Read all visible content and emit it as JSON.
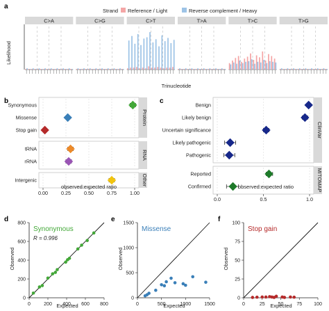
{
  "panel_letters": [
    "a",
    "b",
    "c",
    "d",
    "e",
    "f"
  ],
  "chart_data": [
    {
      "id": "a",
      "type": "bar",
      "legend": {
        "title": "Strand",
        "entries": [
          {
            "name": "Reference / Light",
            "color": "#f4a6a6"
          },
          {
            "name": "Reverse complement / Heavy",
            "color": "#9dc3e6"
          }
        ],
        "placement": "top"
      },
      "facets": [
        "C>A",
        "C>G",
        "C>T",
        "T>A",
        "T>C",
        "T>G"
      ],
      "xlabel": "Trinucleotide",
      "ylabel": "Likelihood",
      "grid": false,
      "series": [
        {
          "name": "Reference / Light",
          "values_by_facet": [
            [
              0.01,
              0.01,
              0.01,
              0.01,
              0.01,
              0.01,
              0.01,
              0.01,
              0.01,
              0.01,
              0.01,
              0.01,
              0.01,
              0.01,
              0.01,
              0.01
            ],
            [
              0.01,
              0.01,
              0.01,
              0.01,
              0.01,
              0.01,
              0.01,
              0.01,
              0.01,
              0.01,
              0.01,
              0.01,
              0.01,
              0.01,
              0.01,
              0.01
            ],
            [
              0.02,
              0.03,
              0.03,
              0.04,
              0.02,
              0.03,
              0.02,
              0.05,
              0.03,
              0.03,
              0.04,
              0.03,
              0.02,
              0.03,
              0.03,
              0.04
            ],
            [
              0.01,
              0.01,
              0.01,
              0.01,
              0.01,
              0.01,
              0.01,
              0.01,
              0.01,
              0.01,
              0.01,
              0.01,
              0.01,
              0.01,
              0.01,
              0.01
            ],
            [
              0.1,
              0.14,
              0.18,
              0.21,
              0.12,
              0.17,
              0.2,
              0.25,
              0.15,
              0.22,
              0.19,
              0.28,
              0.14,
              0.24,
              0.21,
              0.17
            ],
            [
              0.01,
              0.01,
              0.01,
              0.01,
              0.01,
              0.01,
              0.01,
              0.01,
              0.01,
              0.01,
              0.01,
              0.01,
              0.01,
              0.01,
              0.01,
              0.01
            ]
          ]
        },
        {
          "name": "Reverse complement / Heavy",
          "values_by_facet": [
            [
              0.02,
              0.01,
              0.02,
              0.01,
              0.02,
              0.01,
              0.02,
              0.01,
              0.02,
              0.01,
              0.02,
              0.01,
              0.02,
              0.01,
              0.02,
              0.01
            ],
            [
              0.02,
              0.01,
              0.02,
              0.01,
              0.02,
              0.01,
              0.02,
              0.01,
              0.02,
              0.01,
              0.02,
              0.01,
              0.02,
              0.01,
              0.02,
              0.01
            ],
            [
              0.45,
              0.52,
              0.4,
              0.55,
              0.38,
              0.48,
              0.5,
              0.58,
              0.42,
              0.47,
              0.36,
              0.53,
              0.44,
              0.49,
              0.41,
              0.46
            ],
            [
              0.02,
              0.01,
              0.02,
              0.01,
              0.02,
              0.01,
              0.02,
              0.01,
              0.02,
              0.01,
              0.02,
              0.01,
              0.02,
              0.01,
              0.02,
              0.01
            ],
            [
              0.08,
              0.11,
              0.09,
              0.14,
              0.1,
              0.12,
              0.13,
              0.16,
              0.09,
              0.12,
              0.11,
              0.15,
              0.1,
              0.13,
              0.12,
              0.11
            ],
            [
              0.02,
              0.01,
              0.02,
              0.01,
              0.02,
              0.01,
              0.02,
              0.01,
              0.02,
              0.01,
              0.02,
              0.01,
              0.02,
              0.01,
              0.02,
              0.01
            ]
          ]
        }
      ]
    },
    {
      "id": "b",
      "type": "scatter",
      "xlabel": "observed:expected ratio",
      "xlim": [
        0,
        1
      ],
      "x_ticks": [
        "0.00",
        "0.25",
        "0.50",
        "0.75",
        "1.00"
      ],
      "groups": [
        {
          "strip": "Protein",
          "rows": [
            {
              "label": "Synonymous",
              "value": 0.98,
              "lo": 0.95,
              "hi": 1.01,
              "color": "#43a838"
            },
            {
              "label": "Missense",
              "value": 0.27,
              "lo": 0.25,
              "hi": 0.29,
              "color": "#3a7fb8"
            },
            {
              "label": "Stop gain",
              "value": 0.02,
              "lo": 0.01,
              "hi": 0.03,
              "color": "#b52a2a"
            }
          ]
        },
        {
          "strip": "RNA",
          "rows": [
            {
              "label": "tRNA",
              "value": 0.3,
              "lo": 0.27,
              "hi": 0.33,
              "color": "#ec8a2a"
            },
            {
              "label": "rRNA",
              "value": 0.28,
              "lo": 0.25,
              "hi": 0.31,
              "color": "#9a55b5"
            }
          ]
        },
        {
          "strip": "Other",
          "rows": [
            {
              "label": "Intergenic",
              "value": 0.75,
              "lo": 0.72,
              "hi": 0.78,
              "color": "#f1c40f"
            }
          ]
        }
      ]
    },
    {
      "id": "c",
      "type": "scatter",
      "xlabel": "observed:expected ratio",
      "xlim": [
        0,
        1
      ],
      "x_ticks": [
        "0.0",
        "0.5",
        "1.0"
      ],
      "groups": [
        {
          "strip": "ClinVar",
          "rows": [
            {
              "label": "Benign",
              "value": 0.99,
              "lo": 0.98,
              "hi": 1.0,
              "color": "#17288a"
            },
            {
              "label": "Likely benign",
              "value": 0.95,
              "lo": 0.92,
              "hi": 0.98,
              "color": "#17288a"
            },
            {
              "label": "Uncertain significance",
              "value": 0.53,
              "lo": 0.5,
              "hi": 0.56,
              "color": "#17288a"
            },
            {
              "label": "Likely pathogenic",
              "value": 0.14,
              "lo": 0.08,
              "hi": 0.2,
              "color": "#17288a"
            },
            {
              "label": "Pathogenic",
              "value": 0.13,
              "lo": 0.07,
              "hi": 0.19,
              "color": "#17288a"
            }
          ]
        },
        {
          "strip": "MITOMAP",
          "rows": [
            {
              "label": "Reported",
              "value": 0.56,
              "lo": 0.53,
              "hi": 0.6,
              "color": "#1e7a2a"
            },
            {
              "label": "Confirmed",
              "value": 0.17,
              "lo": 0.1,
              "hi": 0.23,
              "color": "#1e7a2a"
            }
          ]
        }
      ]
    },
    {
      "id": "d",
      "type": "scatter",
      "title": "Synonymous",
      "annotation": "R = 0.996",
      "xlabel": "Expected",
      "ylabel": "Observed",
      "xlim": [
        0,
        800
      ],
      "ylim": [
        0,
        800
      ],
      "x_ticks": [
        0,
        200,
        400,
        600,
        800
      ],
      "y_ticks": [
        0,
        200,
        400,
        600,
        800
      ],
      "color": "#43a838",
      "points": [
        [
          45,
          50
        ],
        [
          110,
          115
        ],
        [
          140,
          130
        ],
        [
          200,
          210
        ],
        [
          250,
          255
        ],
        [
          280,
          270
        ],
        [
          300,
          300
        ],
        [
          390,
          380
        ],
        [
          410,
          405
        ],
        [
          430,
          420
        ],
        [
          520,
          520
        ],
        [
          560,
          560
        ],
        [
          620,
          610
        ],
        [
          690,
          690
        ]
      ]
    },
    {
      "id": "e",
      "type": "scatter",
      "title": "Missense",
      "xlabel": "Expected",
      "ylabel": "Observed",
      "xlim": [
        0,
        1500
      ],
      "ylim": [
        0,
        1500
      ],
      "x_ticks": [
        0,
        500,
        1000,
        1500
      ],
      "y_ticks": [
        0,
        500,
        1000,
        1500
      ],
      "color": "#3a7fb8",
      "points": [
        [
          160,
          40
        ],
        [
          200,
          60
        ],
        [
          240,
          90
        ],
        [
          380,
          150
        ],
        [
          500,
          260
        ],
        [
          560,
          240
        ],
        [
          600,
          320
        ],
        [
          700,
          390
        ],
        [
          780,
          300
        ],
        [
          950,
          280
        ],
        [
          1000,
          250
        ],
        [
          1150,
          420
        ],
        [
          1420,
          310
        ]
      ]
    },
    {
      "id": "f",
      "type": "scatter",
      "title": "Stop gain",
      "xlabel": "Expected",
      "ylabel": "Observed",
      "xlim": [
        0,
        100
      ],
      "ylim": [
        0,
        100
      ],
      "x_ticks": [
        0,
        25,
        50,
        75,
        100
      ],
      "y_ticks": [
        0,
        25,
        50,
        75,
        100
      ],
      "color": "#b52a2a",
      "points": [
        [
          12,
          0.5
        ],
        [
          18,
          0.8
        ],
        [
          25,
          1
        ],
        [
          30,
          1
        ],
        [
          35,
          1.5
        ],
        [
          38,
          1
        ],
        [
          41,
          0.5
        ],
        [
          44,
          2
        ],
        [
          52,
          1
        ],
        [
          55,
          0.5
        ],
        [
          63,
          1
        ],
        [
          68,
          0.8
        ]
      ]
    }
  ]
}
